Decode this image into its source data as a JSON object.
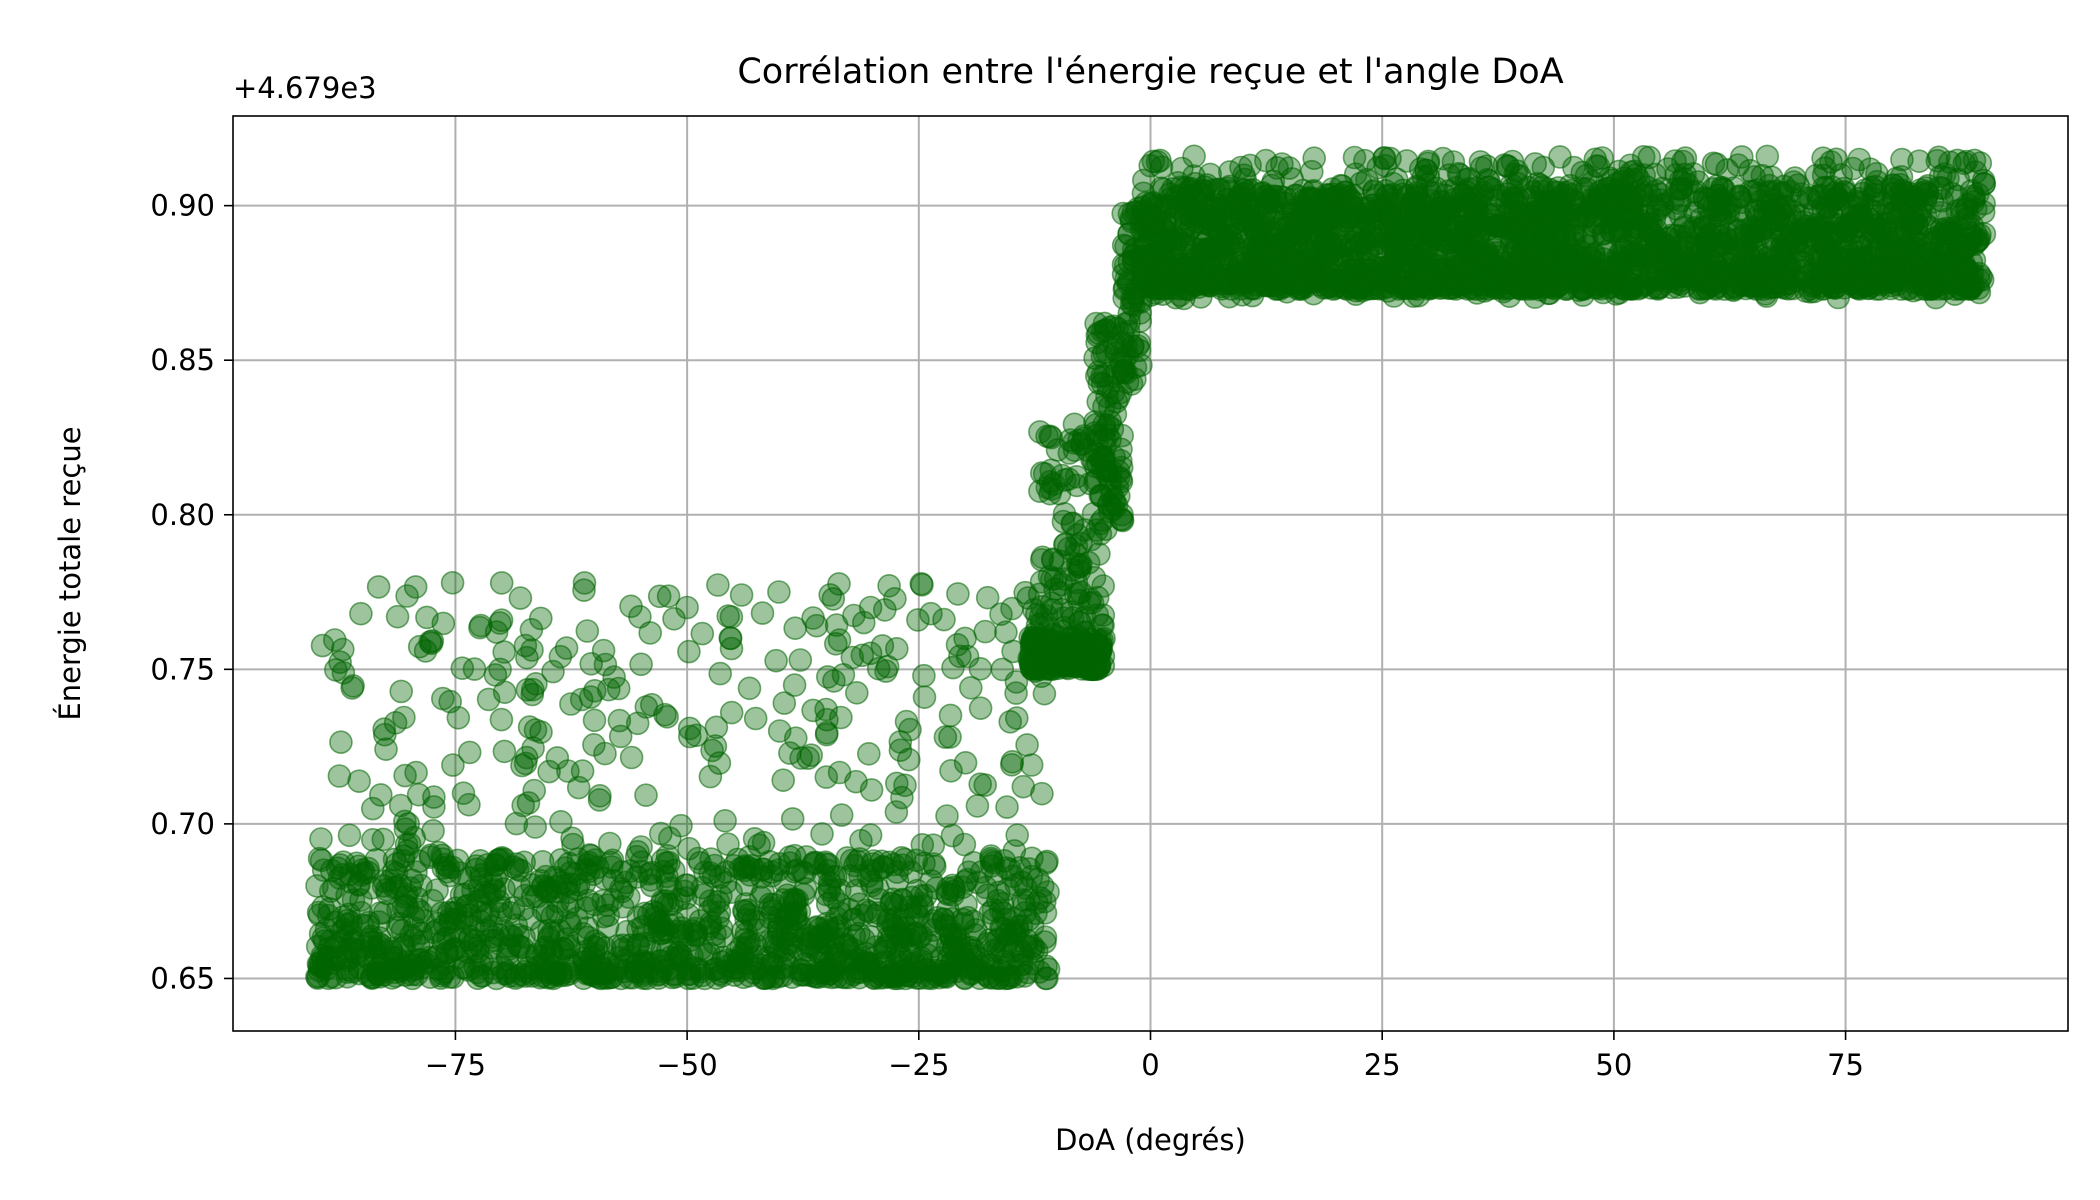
{
  "chart_data": {
    "type": "scatter",
    "title": "Corrélation entre l'énergie reçue et l'angle DoA",
    "xlabel": "DoA (degrés)",
    "ylabel": "Énergie totale reçue",
    "y_offset_label": "+4.679e3",
    "xlim": [
      -99,
      99
    ],
    "ylim": [
      0.633,
      0.929
    ],
    "x_ticks": [
      -75,
      -50,
      -25,
      0,
      25,
      50,
      75
    ],
    "x_tick_labels": [
      "−75",
      "−50",
      "−25",
      "0",
      "25",
      "50",
      "75"
    ],
    "y_ticks": [
      0.65,
      0.7,
      0.75,
      0.8,
      0.85,
      0.9
    ],
    "y_tick_labels": [
      "0.65",
      "0.70",
      "0.75",
      "0.80",
      "0.85",
      "0.90"
    ],
    "grid": true,
    "marker_color": "#006400",
    "marker_alpha": 0.38,
    "series": [
      {
        "regions": [
          {
            "x_range": [
              -90,
              -11
            ],
            "y_range": [
              0.65,
              0.778
            ],
            "dense_y_range": [
              0.65,
              0.69
            ],
            "note": "sparse above dense band"
          },
          {
            "x_range": [
              -13,
              -5
            ],
            "y_range": [
              0.75,
              0.77
            ],
            "dense_y_range": [
              0.75,
              0.76
            ]
          },
          {
            "x_range": [
              -12,
              -5
            ],
            "y_range": [
              0.77,
              0.83
            ]
          },
          {
            "x_range": [
              -6,
              -3
            ],
            "y_range": [
              0.795,
              0.862
            ]
          },
          {
            "x_range": [
              -3,
              -1
            ],
            "y_range": [
              0.84,
              0.9
            ]
          },
          {
            "x_range": [
              -1,
              90
            ],
            "y_range": [
              0.87,
              0.916
            ],
            "dense_y_range": [
              0.873,
              0.906
            ]
          }
        ],
        "points": [
          [
            -89.5,
            0.654
          ],
          [
            -85.2,
            0.768
          ],
          [
            -80.1,
            0.7
          ],
          [
            -75.3,
            0.778
          ],
          [
            -70.2,
            0.765
          ],
          [
            -65.0,
            0.655
          ],
          [
            -60.4,
            0.741
          ],
          [
            -55.1,
            0.767
          ],
          [
            -50.0,
            0.77
          ],
          [
            -45.3,
            0.76
          ],
          [
            -40.1,
            0.775
          ],
          [
            -35.0,
            0.737
          ],
          [
            -30.2,
            0.77
          ],
          [
            -25.1,
            0.766
          ],
          [
            -20.0,
            0.76
          ],
          [
            -15.6,
            0.762
          ],
          [
            -11.0,
            0.653
          ],
          [
            -10.0,
            0.755
          ],
          [
            -8.0,
            0.79
          ],
          [
            -6.0,
            0.83
          ],
          [
            -4.0,
            0.845
          ],
          [
            -2.0,
            0.87
          ],
          [
            -1.0,
            0.895
          ],
          [
            0.5,
            0.88
          ],
          [
            10.0,
            0.905
          ],
          [
            25.0,
            0.88
          ],
          [
            48.0,
            0.915
          ],
          [
            60.0,
            0.895
          ],
          [
            74.0,
            0.915
          ],
          [
            89.8,
            0.876
          ]
        ]
      }
    ]
  }
}
